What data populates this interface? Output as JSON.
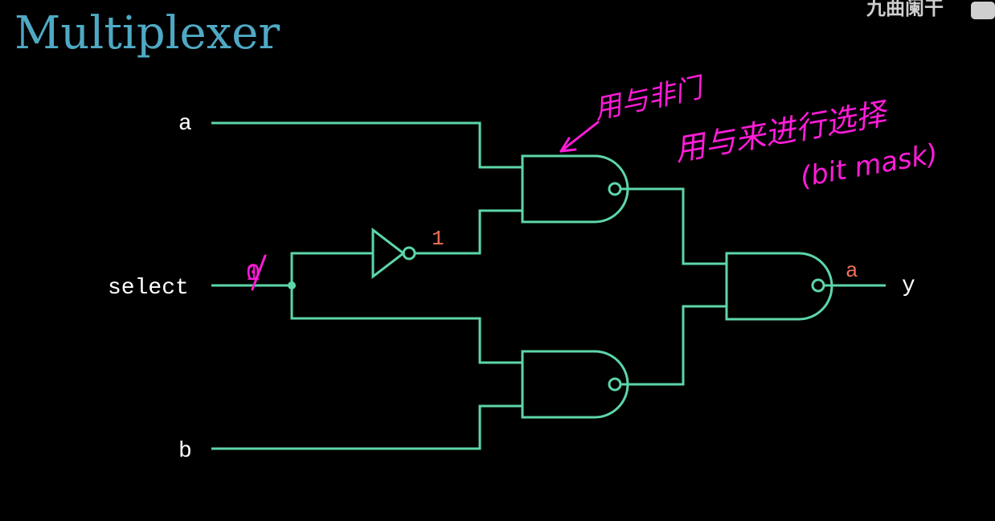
{
  "title": "Multiplexer",
  "watermark": "九曲阑干",
  "inputs": {
    "a": "a",
    "select": "select",
    "b": "b"
  },
  "output": "y",
  "signal_values": {
    "select_original": "0",
    "select_overwrite": "1",
    "inverter_out": "1",
    "output_value": "a"
  },
  "annotations": {
    "arrow_note": "用与非门",
    "note_line1": "用与来进行选择",
    "note_line2": "(bit mask)"
  },
  "colors": {
    "wire": "#5dd6a8",
    "title": "#4fa9c4",
    "value": "#f07058",
    "annotation": "#ff1cd8"
  }
}
